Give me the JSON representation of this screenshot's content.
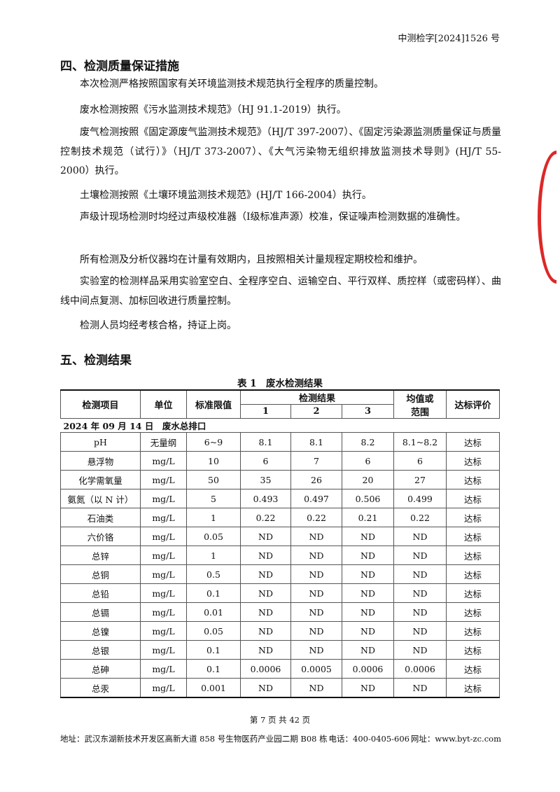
{
  "header": {
    "doc_number": "中测检字[2024]1526 号"
  },
  "section4": {
    "title": "四、检测质量保证措施",
    "paragraphs": [
      "本次检测严格按照国家有关环境监测技术规范执行全程序的质量控制。",
      "废水检测按照《污水监测技术规范》（HJ 91.1-2019）执行。",
      "废气检测按照《固定源废气监测技术规范》（HJ/T 397-2007）、《固定污染源监测质量保证与质量控制技术规范（试行）》（HJ/T 373-2007）、《大气污染物无组织排放监测技术导则》(HJ/T 55-2000）执行。",
      "土壤检测按照《土壤环境监测技术规范》(HJ/T 166-2004）执行。",
      "声级计现场检测时均经过声级校准器（Ⅰ级标准声源）校准，保证噪声检测数据的准确性。",
      "所有检测及分析仪器均在计量有效期内，且按照相关计量规程定期校检和维护。",
      "实验室的检测样品采用实验室空白、全程序空白、运输空白、平行双样、质控样（或密码样）、曲线中间点复测、加标回收进行质量控制。",
      "检测人员均经考核合格，持证上岗。"
    ]
  },
  "section5": {
    "title": "五、检测结果"
  },
  "table": {
    "caption": "表 1　废水检测结果",
    "headers": {
      "item": "检测项目",
      "unit": "单位",
      "limit": "标准限值",
      "results": "检测结果",
      "r1": "1",
      "r2": "2",
      "r3": "3",
      "mean": "均值或范围",
      "eval": "达标评价"
    },
    "group": "2024 年 09 月 14 日　废水总排口",
    "rows": [
      [
        "pH",
        "无量纲",
        "6~9",
        "8.1",
        "8.1",
        "8.2",
        "8.1~8.2",
        "达标"
      ],
      [
        "悬浮物",
        "mg/L",
        "10",
        "6",
        "7",
        "6",
        "6",
        "达标"
      ],
      [
        "化学需氧量",
        "mg/L",
        "50",
        "35",
        "26",
        "20",
        "27",
        "达标"
      ],
      [
        "氨氮（以 N 计）",
        "mg/L",
        "5",
        "0.493",
        "0.497",
        "0.506",
        "0.499",
        "达标"
      ],
      [
        "石油类",
        "mg/L",
        "1",
        "0.22",
        "0.22",
        "0.21",
        "0.22",
        "达标"
      ],
      [
        "六价铬",
        "mg/L",
        "0.05",
        "ND",
        "ND",
        "ND",
        "ND",
        "达标"
      ],
      [
        "总锌",
        "mg/L",
        "1",
        "ND",
        "ND",
        "ND",
        "ND",
        "达标"
      ],
      [
        "总铜",
        "mg/L",
        "0.5",
        "ND",
        "ND",
        "ND",
        "ND",
        "达标"
      ],
      [
        "总铅",
        "mg/L",
        "0.1",
        "ND",
        "ND",
        "ND",
        "ND",
        "达标"
      ],
      [
        "总镉",
        "mg/L",
        "0.01",
        "ND",
        "ND",
        "ND",
        "ND",
        "达标"
      ],
      [
        "总镍",
        "mg/L",
        "0.05",
        "ND",
        "ND",
        "ND",
        "ND",
        "达标"
      ],
      [
        "总银",
        "mg/L",
        "0.1",
        "ND",
        "ND",
        "ND",
        "ND",
        "达标"
      ],
      [
        "总砷",
        "mg/L",
        "0.1",
        "0.0006",
        "0.0005",
        "0.0006",
        "0.0006",
        "达标"
      ],
      [
        "总汞",
        "mg/L",
        "0.001",
        "ND",
        "ND",
        "ND",
        "ND",
        "达标"
      ]
    ]
  },
  "footer": {
    "page": "第 7 页 共 42 页",
    "address": "地址：武汉东湖新技术开发区高新大道 858 号生物医药产业园二期 B08 栋",
    "phone": "电话：400-0405-606",
    "website": "网址：www.byt-zc.com"
  },
  "colors": {
    "stamp": "#dc2828"
  }
}
